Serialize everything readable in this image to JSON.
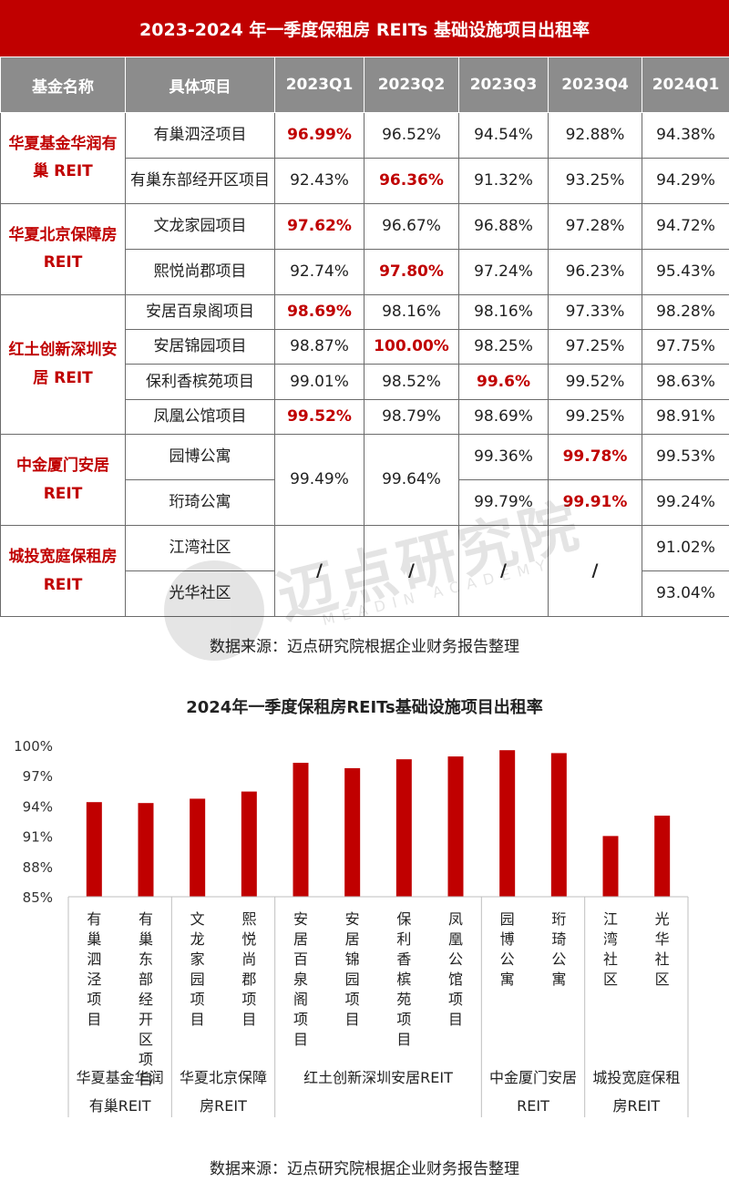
{
  "table": {
    "title": "2023-2024 年一季度保租房 REITs 基础设施项目出租率",
    "headers": [
      "基金名称",
      "具体项目",
      "2023Q1",
      "2023Q2",
      "2023Q3",
      "2023Q4",
      "2024Q1"
    ],
    "funds": [
      "华夏基金华润有巢 REIT",
      "华夏北京保障房 REIT",
      "红土创新深圳安居 REIT",
      "中金厦门安居 REIT",
      "城投宽庭保租房 REIT"
    ],
    "projects": [
      "有巢泗泾项目",
      "有巢东部经开区项目",
      "文龙家园项目",
      "熙悦尚郡项目",
      "安居百泉阁项目",
      "安居锦园项目",
      "保利香槟苑项目",
      "凤凰公馆项目",
      "园博公寓",
      "珩琦公寓",
      "江湾社区",
      "光华社区"
    ],
    "rows": [
      [
        "96.99%",
        "96.52%",
        "94.54%",
        "92.88%",
        "94.38%"
      ],
      [
        "92.43%",
        "96.36%",
        "91.32%",
        "93.25%",
        "94.29%"
      ],
      [
        "97.62%",
        "96.67%",
        "96.88%",
        "97.28%",
        "94.72%"
      ],
      [
        "92.74%",
        "97.80%",
        "97.24%",
        "96.23%",
        "95.43%"
      ],
      [
        "98.69%",
        "98.16%",
        "98.16%",
        "97.33%",
        "98.28%"
      ],
      [
        "98.87%",
        "100.00%",
        "98.25%",
        "97.25%",
        "97.75%"
      ],
      [
        "99.01%",
        "98.52%",
        "99.6%",
        "99.52%",
        "98.63%"
      ],
      [
        "99.52%",
        "98.79%",
        "98.69%",
        "99.25%",
        "98.91%"
      ],
      [
        "",
        "",
        "99.36%",
        "99.78%",
        "99.53%"
      ],
      [
        "",
        "",
        "99.79%",
        "99.91%",
        "99.24%"
      ],
      [
        "",
        "",
        "",
        "",
        "91.02%"
      ],
      [
        "",
        "",
        "",
        "",
        "93.04%"
      ]
    ],
    "xiamen_merged": [
      "99.49%",
      "99.64%"
    ],
    "slash": "/",
    "source": "数据来源：迈点研究院根据企业财务报告整理",
    "highlight_color": "#c00000"
  },
  "watermark": {
    "text": "迈点研究院",
    "sub": "MEADIN ACADEMY"
  },
  "chart_data": {
    "type": "bar",
    "title": "2024年一季度保租房REITs基础设施项目出租率",
    "categories": [
      "有巢泗泾项目",
      "有巢东部经开区项目",
      "文龙家园项目",
      "熙悦尚郡项目",
      "安居百泉阁项目",
      "安居锦园项目",
      "保利香槟苑项目",
      "凤凰公馆项目",
      "园博公寓",
      "珩琦公寓",
      "江湾社区",
      "光华社区"
    ],
    "values": [
      94.38,
      94.29,
      94.72,
      95.43,
      98.28,
      97.75,
      98.63,
      98.91,
      99.53,
      99.24,
      91.02,
      93.04
    ],
    "groups": [
      {
        "label": "华夏基金华润有巢REIT",
        "count": 2
      },
      {
        "label": "华夏北京保障房REIT",
        "count": 2
      },
      {
        "label": "红土创新深圳安居REIT",
        "count": 4
      },
      {
        "label": "中金厦门安居REIT",
        "count": 2
      },
      {
        "label": "城投宽庭保租房REIT",
        "count": 2
      }
    ],
    "yticks": [
      "85%",
      "88%",
      "91%",
      "94%",
      "97%",
      "100%"
    ],
    "ylim": [
      85,
      100
    ],
    "bar_color": "#c00000",
    "xlabel": "",
    "ylabel": ""
  },
  "chart_source": "数据来源：迈点研究院根据企业财务报告整理"
}
